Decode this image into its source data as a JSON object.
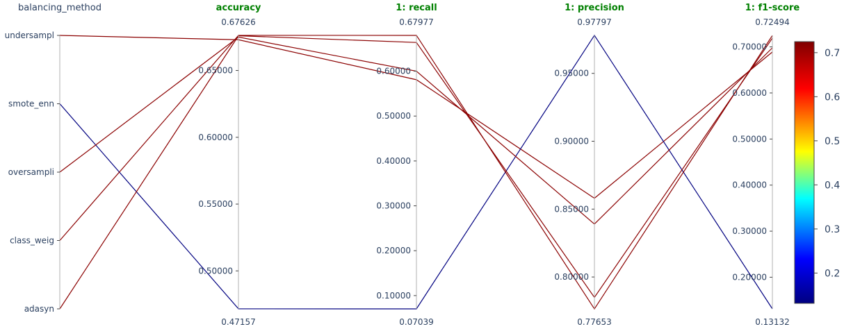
{
  "chart_data": {
    "type": "parallel_coordinates",
    "categorical_axis": {
      "label": "balancing_method",
      "categories": [
        "undersampl",
        "smote_enn",
        "oversampli",
        "class_weig",
        "adasyn"
      ]
    },
    "axes": [
      {
        "label": "accuracy",
        "range": [
          0.47157,
          0.67626
        ],
        "range_labels": [
          "0.47157",
          "0.67626"
        ],
        "ticks": [
          0.5,
          0.55,
          0.6,
          0.65
        ],
        "tick_labels": [
          "0.50000",
          "0.55000",
          "0.60000",
          "0.65000"
        ]
      },
      {
        "label": "1: recall",
        "range": [
          0.07039,
          0.67977
        ],
        "range_labels": [
          "0.07039",
          "0.67977"
        ],
        "ticks": [
          0.1,
          0.2,
          0.3,
          0.4,
          0.5,
          0.6
        ],
        "tick_labels": [
          "0.10000",
          "0.20000",
          "0.30000",
          "0.40000",
          "0.50000",
          "0.60000"
        ]
      },
      {
        "label": "1: precision",
        "range": [
          0.77653,
          0.97797
        ],
        "range_labels": [
          "0.77653",
          "0.97797"
        ],
        "ticks": [
          0.8,
          0.85,
          0.9,
          0.95
        ],
        "tick_labels": [
          "0.80000",
          "0.85000",
          "0.90000",
          "0.95000"
        ]
      },
      {
        "label": "1: f1-score",
        "range": [
          0.13132,
          0.72494
        ],
        "range_labels": [
          "0.13132",
          "0.72494"
        ],
        "ticks": [
          0.2,
          0.3,
          0.4,
          0.5,
          0.6,
          0.7
        ],
        "tick_labels": [
          "0.20000",
          "0.30000",
          "0.40000",
          "0.50000",
          "0.60000",
          "0.70000"
        ]
      }
    ],
    "lines": [
      {
        "category": "undersampl",
        "values": [
          0.673,
          0.581,
          0.858,
          0.689
        ],
        "color": "#8b0000"
      },
      {
        "category": "smote_enn",
        "values": [
          0.4716,
          0.0704,
          0.978,
          0.1313
        ],
        "color": "#000080"
      },
      {
        "category": "oversampli",
        "values": [
          0.675,
          0.6,
          0.839,
          0.698
        ],
        "color": "#8b0000"
      },
      {
        "category": "class_weig",
        "values": [
          0.6763,
          0.6798,
          0.7765,
          0.7249
        ],
        "color": "#8b0000"
      },
      {
        "category": "adasyn",
        "values": [
          0.676,
          0.664,
          0.785,
          0.719
        ],
        "color": "#8b0000"
      }
    ],
    "colorbar": {
      "range": [
        0.13132,
        0.72494
      ],
      "ticks": [
        0.2,
        0.3,
        0.4,
        0.5,
        0.6,
        0.7
      ],
      "tick_labels": [
        "0.2",
        "0.3",
        "0.4",
        "0.5",
        "0.6",
        "0.7"
      ],
      "colorscale": [
        "#000080",
        "#0000ff",
        "#00ffff",
        "#ffff00",
        "#ff0000",
        "#800000"
      ]
    }
  }
}
